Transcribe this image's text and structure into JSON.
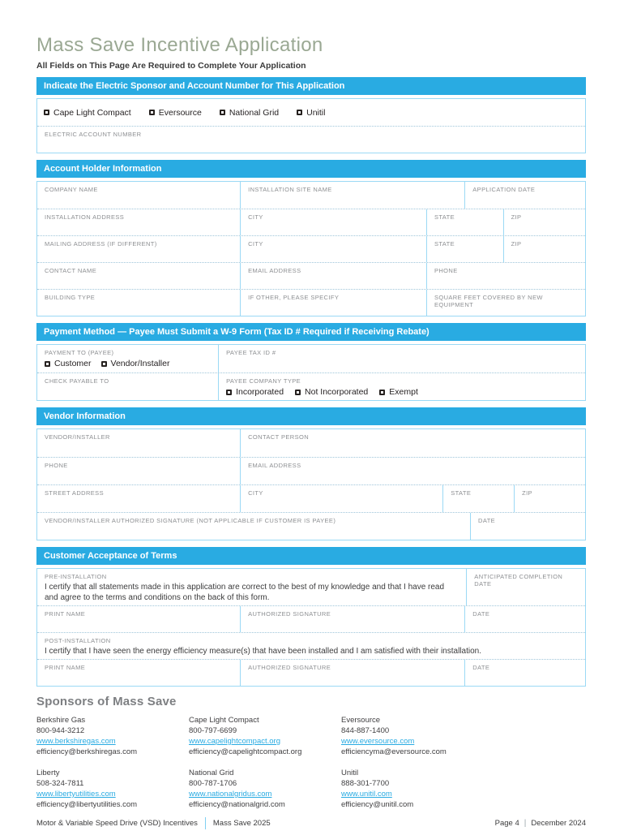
{
  "page": {
    "title": "Mass Save Incentive Application",
    "subtitle": "All Fields on This Page Are Required to Complete Your Application"
  },
  "colors": {
    "accent": "#29abe2",
    "title_green": "#9aa893",
    "link_blue": "#29abe2"
  },
  "sections": {
    "sponsor": {
      "header": "Indicate the Electric Sponsor and Account Number for This Application",
      "options": [
        "Cape Light Compact",
        "Eversource",
        "National Grid",
        "Unitil"
      ],
      "account_field": "ELECTRIC ACCOUNT NUMBER"
    },
    "account_holder": {
      "header": "Account Holder Information",
      "labels": {
        "company_name": "COMPANY NAME",
        "installation_site_name": "INSTALLATION SITE NAME",
        "application_date": "APPLICATION DATE",
        "installation_address": "INSTALLATION ADDRESS",
        "city": "CITY",
        "state": "STATE",
        "zip": "ZIP",
        "mailing_address": "MAILING ADDRESS (IF DIFFERENT)",
        "contact_name": "CONTACT NAME",
        "email_address": "EMAIL ADDRESS",
        "phone": "PHONE",
        "building_type": "BUILDING TYPE",
        "if_other": "IF OTHER, PLEASE SPECIFY",
        "square_feet": "SQUARE FEET COVERED BY NEW EQUIPMENT"
      }
    },
    "payment": {
      "header": "Payment Method — Payee Must Submit a W-9 Form (Tax ID # Required if Receiving Rebate)",
      "payment_to_label": "PAYMENT TO (PAYEE)",
      "payment_to_options": [
        "Customer",
        "Vendor/Installer"
      ],
      "payee_tax_id_label": "PAYEE TAX ID #",
      "check_payable_label": "CHECK PAYABLE TO",
      "company_type_label": "PAYEE COMPANY TYPE",
      "company_type_options": [
        "Incorporated",
        "Not Incorporated",
        "Exempt"
      ]
    },
    "vendor": {
      "header": "Vendor Information",
      "labels": {
        "vendor_installer": "VENDOR/INSTALLER",
        "contact_person": "CONTACT PERSON",
        "phone": "PHONE",
        "email_address": "EMAIL ADDRESS",
        "street_address": "STREET ADDRESS",
        "city": "CITY",
        "state": "STATE",
        "zip": "ZIP",
        "authorized_signature": "VENDOR/INSTALLER AUTHORIZED SIGNATURE (NOT APPLICABLE IF CUSTOMER IS PAYEE)",
        "date": "DATE"
      }
    },
    "terms": {
      "header": "Customer Acceptance of Terms",
      "pre_label": "PRE-INSTALLATION",
      "pre_text": "I certify that all statements made in this application are correct to the best of my knowledge and that I have read and agree to the terms and conditions on the back of this form.",
      "anticipated_label": "ANTICIPATED COMPLETION DATE",
      "print_name_label": "PRINT NAME",
      "signature_label": "AUTHORIZED SIGNATURE",
      "date_label": "DATE",
      "post_label": "POST-INSTALLATION",
      "post_text": "I certify that I have seen the energy efficiency measure(s) that have been installed and I am satisfied with their installation."
    }
  },
  "sponsors": {
    "heading": "Sponsors of Mass Save",
    "entries": [
      {
        "name": "Berkshire Gas",
        "phone": "800-944-3212",
        "url": "www.berkshiregas.com",
        "email": "efficiency@berkshiregas.com"
      },
      {
        "name": "Cape Light Compact",
        "phone": "800-797-6699",
        "url": "www.capelightcompact.org",
        "email": "efficiency@capelightcompact.org"
      },
      {
        "name": "Eversource",
        "phone": "844-887-1400",
        "url": "www.eversource.com",
        "email": "efficiencyma@eversource.com"
      },
      {
        "name": "Liberty",
        "phone": "508-324-7811",
        "url": "www.libertyutilities.com",
        "email": "efficiency@libertyutilities.com"
      },
      {
        "name": "National Grid",
        "phone": "800-787-1706",
        "url": "www.nationalgridus.com",
        "email": "efficiency@nationalgrid.com"
      },
      {
        "name": "Unitil",
        "phone": "888-301-7700",
        "url": "www.unitil.com",
        "email": "efficiency@unitil.com"
      }
    ]
  },
  "footer": {
    "left_1": "Motor & Variable Speed Drive (VSD) Incentives",
    "left_2": "Mass Save 2025",
    "right_1": "Page 4",
    "separator": "|",
    "right_2": "December 2024"
  }
}
